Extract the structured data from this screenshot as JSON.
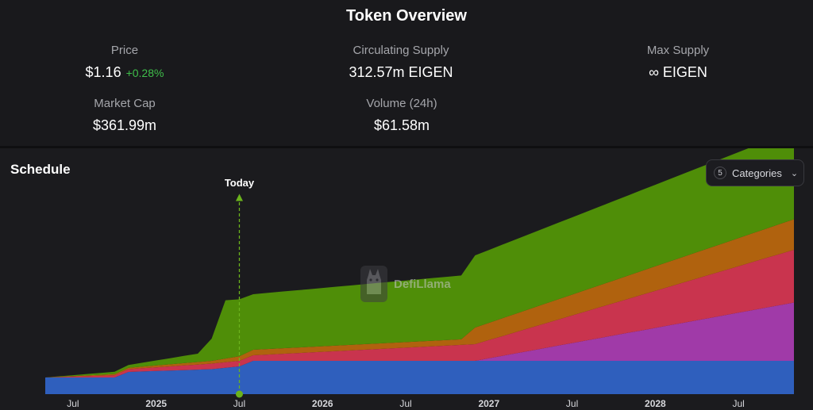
{
  "overview": {
    "title": "Token Overview",
    "price": {
      "label": "Price",
      "value": "$1.16",
      "change": "+0.28%"
    },
    "circulating_supply": {
      "label": "Circulating Supply",
      "value": "312.57m EIGEN"
    },
    "max_supply": {
      "label": "Max Supply",
      "value": "∞ EIGEN"
    },
    "market_cap": {
      "label": "Market Cap",
      "value": "$361.99m"
    },
    "volume": {
      "label": "Volume (24h)",
      "value": "$61.58m"
    }
  },
  "schedule": {
    "title": "Schedule",
    "categories_button": {
      "count": "5",
      "label": "Categories",
      "icon": "chevron-down-icon"
    },
    "today_label": "Today",
    "watermark": "DefiLlama"
  },
  "colors": {
    "blue": "#2f5fbd",
    "magenta": "#a03aa8",
    "red": "#c9344e",
    "orange": "#b0620e",
    "green": "#4f8e08",
    "today_line": "#6bb31c",
    "positive": "#3fbf4a"
  },
  "chart_data": {
    "type": "area",
    "stacked": true,
    "x_ticks": [
      "Jul",
      "2025",
      "Jul",
      "2026",
      "Jul",
      "2027",
      "Jul",
      "2028",
      "Jul"
    ],
    "x_start": "2024-05",
    "x_end": "2028-11",
    "today": "2025-07",
    "series": [
      {
        "color": "blue",
        "x": [
          "2024-05",
          "2024-10",
          "2024-11",
          "2025-05",
          "2025-07",
          "2025-08",
          "2026-12",
          "2028-11"
        ],
        "values": [
          0.06,
          0.06,
          0.08,
          0.09,
          0.1,
          0.12,
          0.12,
          0.12
        ]
      },
      {
        "color": "magenta",
        "x": [
          "2024-05",
          "2026-12",
          "2028-11"
        ],
        "values": [
          0,
          0,
          0.21
        ]
      },
      {
        "color": "red",
        "x": [
          "2024-05",
          "2024-11",
          "2025-05",
          "2025-08",
          "2026-12",
          "2028-11"
        ],
        "values": [
          0,
          0.01,
          0.02,
          0.02,
          0.06,
          0.19
        ]
      },
      {
        "color": "orange",
        "x": [
          "2024-05",
          "2025-05",
          "2025-08",
          "2026-11",
          "2026-12",
          "2028-11"
        ],
        "values": [
          0,
          0.01,
          0.02,
          0.02,
          0.06,
          0.11
        ]
      },
      {
        "color": "green",
        "x": [
          "2024-05",
          "2024-11",
          "2025-04",
          "2025-05",
          "2025-06",
          "2025-08",
          "2026-11",
          "2026-12",
          "2028-11"
        ],
        "values": [
          0,
          0.01,
          0.03,
          0.08,
          0.21,
          0.2,
          0.23,
          0.26,
          0.32
        ]
      }
    ],
    "grid": false,
    "legend": "none"
  }
}
